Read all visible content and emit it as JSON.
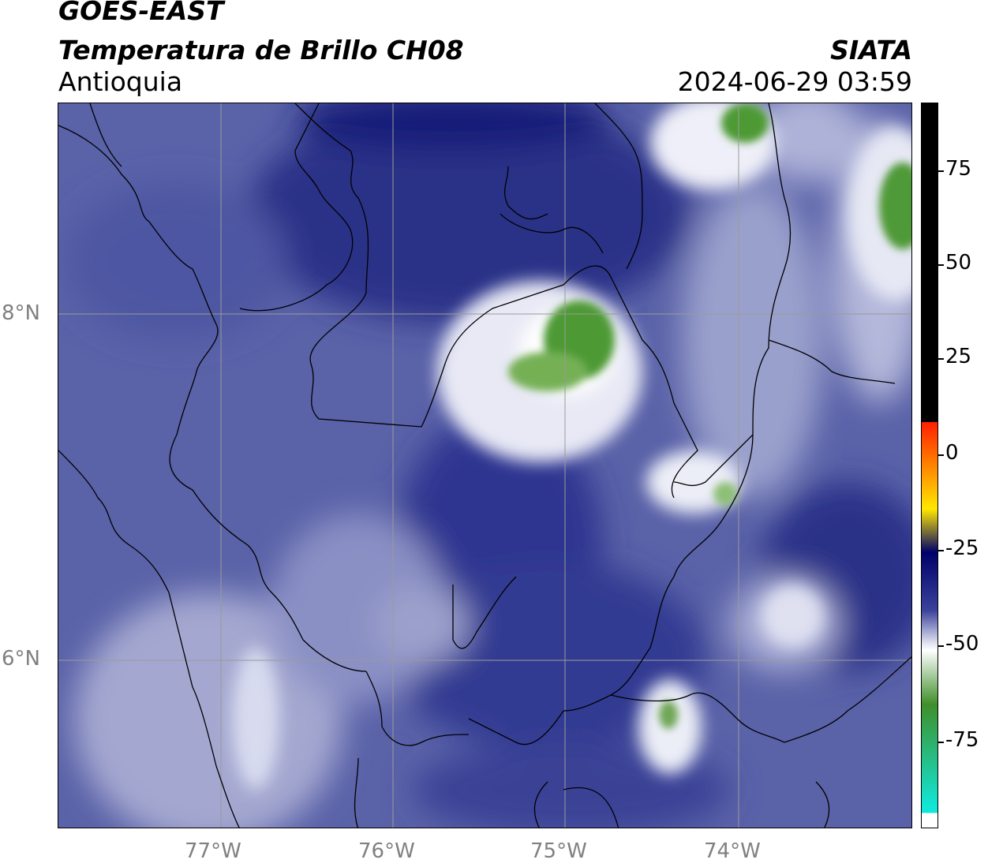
{
  "header": {
    "satellite": "GOES-EAST",
    "product": "Temperatura de Brillo CH08",
    "region": "Antioquia",
    "agency": "SIATA",
    "timestamp": "2024-06-29 03:59"
  },
  "map": {
    "lon_labels": [
      "77°W",
      "76°W",
      "75°W",
      "74°W"
    ],
    "lat_labels": [
      "8°N",
      "6°N"
    ]
  },
  "colorbar": {
    "tick_labels": [
      "75",
      "50",
      "25",
      "0",
      "-25",
      "-50",
      "-75"
    ],
    "colors": {
      "warm": "#000000",
      "red": "#ff1f00",
      "yellow": "#ffe800",
      "dark_navy": "#00006a",
      "blue": "#3a429a",
      "pale": "#dfe1f0",
      "white": "#ffffff",
      "green": "#3f8f2a",
      "cyan": "#12e6d6"
    }
  }
}
